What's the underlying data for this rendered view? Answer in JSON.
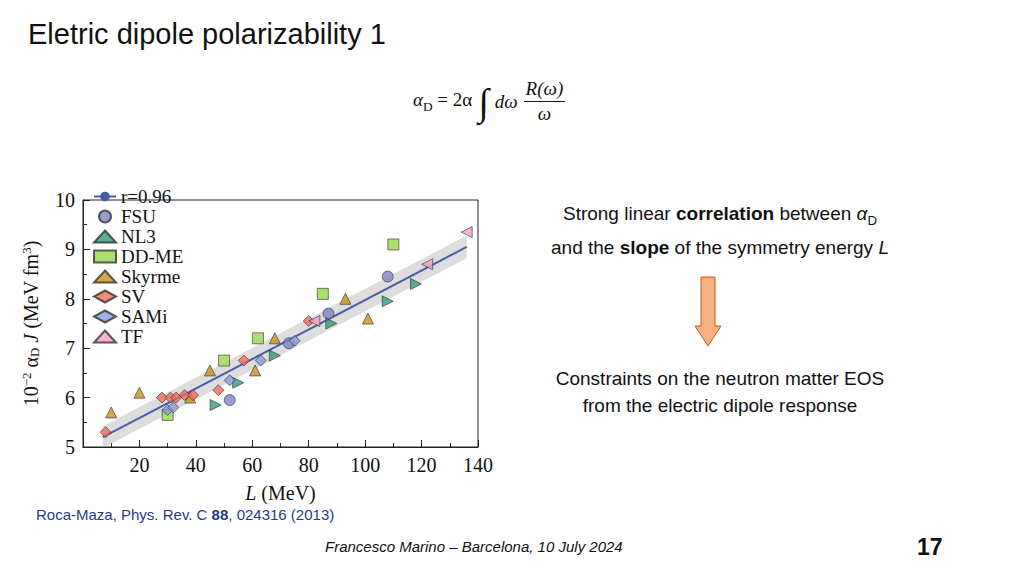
{
  "slide": {
    "title": "Eletric dipole polarizability 1",
    "formula": {
      "lhs": [
        {
          "text": "α",
          "italic": true
        },
        {
          "text": "D",
          "sub": true
        },
        {
          "text": " = 2α"
        }
      ],
      "integral": "∫",
      "differential": [
        {
          "text": "dω",
          "italic": true
        }
      ],
      "numerator": [
        {
          "text": "R(ω)",
          "italic": true
        }
      ],
      "denominator": [
        {
          "text": "ω",
          "italic": true
        }
      ]
    },
    "text_top": [
      [
        {
          "text": "Strong linear "
        },
        {
          "text": "correlation",
          "bold": true
        },
        {
          "text": " between "
        },
        {
          "text": "α",
          "italic": true
        },
        {
          "text": "D",
          "sub": true
        }
      ],
      [
        {
          "text": "and the "
        },
        {
          "text": "slope",
          "bold": true
        },
        {
          "text": " of the symmetry energy "
        },
        {
          "text": "L",
          "italic": true
        }
      ]
    ],
    "text_bottom": [
      [
        {
          "text": "Constraints on the neutron matter EOS"
        }
      ],
      [
        {
          "text": "from the electric dipole response"
        }
      ]
    ],
    "citation": [
      {
        "text": "Roca-Maza, Phys. Rev. C "
      },
      {
        "text": "88",
        "bold": true
      },
      {
        "text": ", 024316 (2013)"
      }
    ],
    "footer": "Francesco Marino – Barcelona, 10 July 2024",
    "page_number": "17"
  },
  "chart_data": {
    "type": "scatter",
    "x_label": [
      {
        "text": "L",
        "italic": true
      },
      {
        "text": " (MeV)"
      }
    ],
    "y_label": [
      {
        "text": "10"
      },
      {
        "text": "−2",
        "sup": true
      },
      {
        "text": " α"
      },
      {
        "text": "D",
        "sub": true
      },
      {
        "text": " "
      },
      {
        "text": "J",
        "italic": true
      },
      {
        "text": " (MeV fm"
      },
      {
        "text": "3",
        "sup": true
      },
      {
        "text": ")"
      }
    ],
    "xlim": [
      0,
      140
    ],
    "xticks": [
      20,
      40,
      60,
      80,
      100,
      120,
      140
    ],
    "ylim": [
      5,
      10
    ],
    "yticks": [
      5,
      6,
      7,
      8,
      9,
      10
    ],
    "grid": false,
    "legend": "upper left",
    "band": {
      "x": [
        7,
        136
      ],
      "lower": [
        4.98,
        8.82
      ],
      "upper": [
        5.42,
        9.28
      ]
    },
    "series": [
      {
        "name": "r=0.96",
        "type": "line",
        "color": "#4a5aa8",
        "line_style": "solid",
        "x": [
          7,
          136
        ],
        "values": [
          5.2,
          9.05
        ]
      },
      {
        "name": "FSU",
        "type": "scatter",
        "marker": "circle",
        "color": "#7f82c6",
        "x": [
          52,
          73,
          87,
          108
        ],
        "values": [
          5.95,
          7.1,
          7.7,
          8.45
        ]
      },
      {
        "name": "NL3",
        "type": "scatter",
        "marker": "triangle-right",
        "color": "#2f9c7c",
        "x": [
          47,
          55,
          68,
          88,
          108,
          118
        ],
        "values": [
          5.85,
          6.3,
          6.85,
          7.5,
          7.95,
          8.3
        ]
      },
      {
        "name": "DD-ME",
        "type": "scatter",
        "marker": "square",
        "color": "#9ad64c",
        "x": [
          30,
          50,
          62,
          85,
          110
        ],
        "values": [
          5.65,
          6.75,
          7.2,
          8.1,
          9.1
        ]
      },
      {
        "name": "Skyrme",
        "type": "scatter",
        "marker": "triangle",
        "color": "#c8901e",
        "x": [
          10,
          20,
          38,
          45,
          61,
          68,
          93,
          101
        ],
        "values": [
          5.7,
          6.1,
          6.0,
          6.55,
          6.55,
          7.2,
          8.0,
          7.6
        ]
      },
      {
        "name": "SV",
        "type": "scatter",
        "marker": "diamond",
        "color": "#f06a5a",
        "x": [
          8,
          28,
          31,
          33,
          36,
          39,
          48,
          57,
          80
        ],
        "values": [
          5.3,
          6.0,
          6.0,
          6.0,
          6.05,
          6.05,
          6.15,
          6.75,
          7.55
        ]
      },
      {
        "name": "SAMi",
        "type": "scatter",
        "marker": "diamond",
        "color": "#8a9ae0",
        "x": [
          30,
          32,
          52,
          63,
          75
        ],
        "values": [
          5.75,
          5.8,
          6.35,
          6.75,
          7.15
        ]
      },
      {
        "name": "TF",
        "type": "scatter",
        "marker": "triangle-left",
        "color": "#f0a0c8",
        "x": [
          82,
          122,
          136
        ],
        "values": [
          7.55,
          8.7,
          9.35
        ]
      }
    ]
  }
}
